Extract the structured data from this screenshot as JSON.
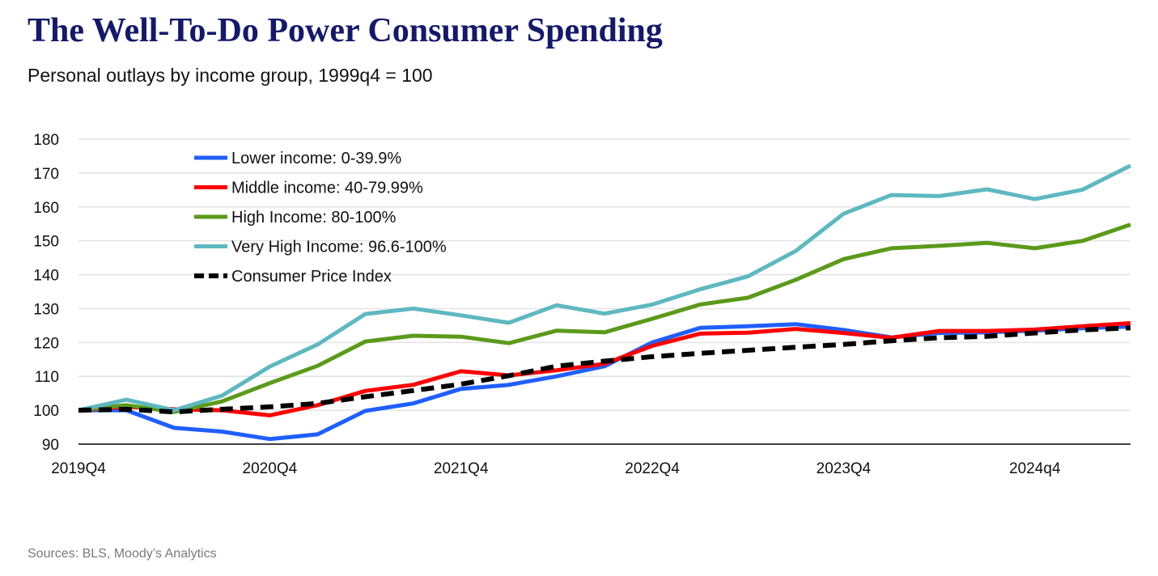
{
  "chart_data": {
    "type": "line",
    "title": "The Well-To-Do Power Consumer Spending",
    "subtitle": "Personal outlays by income group, 1999q4 = 100",
    "source": "Sources: BLS, Moody’s Analytics",
    "xlabel": "",
    "ylabel": "",
    "ylim": [
      90,
      180
    ],
    "yticks": [
      90,
      100,
      110,
      120,
      130,
      140,
      150,
      160,
      170,
      180
    ],
    "x": [
      "2019Q4",
      "2020Q1",
      "2020Q2",
      "2020Q3",
      "2020Q4",
      "2021Q1",
      "2021Q2",
      "2021Q3",
      "2021Q4",
      "2022Q1",
      "2022Q2",
      "2022Q3",
      "2022Q4",
      "2023Q1",
      "2023Q2",
      "2023Q3",
      "2023Q4",
      "2024Q1",
      "2024Q2",
      "2024Q3",
      "2024q4",
      "2025Q1",
      "2025Q2"
    ],
    "xtick_labels": [
      {
        "index": 0,
        "label": "2019Q4"
      },
      {
        "index": 4,
        "label": "2020Q4"
      },
      {
        "index": 8,
        "label": "2021Q4"
      },
      {
        "index": 12,
        "label": "2022Q4"
      },
      {
        "index": 16,
        "label": "2023Q4"
      },
      {
        "index": 20,
        "label": "2024q4"
      }
    ],
    "grid": true,
    "legend_position": "top-left",
    "series": [
      {
        "name": "Lower income: 0-39.9%",
        "color": "#1f5fff",
        "dashed": false,
        "values": [
          100,
          100,
          94.8,
          93.7,
          91.5,
          92.9,
          99.8,
          102,
          106.3,
          107.5,
          110,
          113,
          120,
          124.3,
          124.8,
          125.4,
          123.7,
          121.5,
          122.8,
          123,
          123.5,
          124.2,
          124.7
        ]
      },
      {
        "name": "Middle income: 40-79.99%",
        "color": "#ff0000",
        "dashed": false,
        "values": [
          100,
          101,
          100.3,
          100,
          98.5,
          101.5,
          105.7,
          107.5,
          111.5,
          110.3,
          111.8,
          113.7,
          119,
          122.6,
          122.9,
          124,
          122.8,
          121.4,
          123.4,
          123.4,
          123.8,
          124.8,
          125.7
        ]
      },
      {
        "name": "High Income: 80-100%",
        "color": "#5b9a1a",
        "dashed": false,
        "values": [
          100,
          101.5,
          99.5,
          102.6,
          108,
          113.1,
          120.3,
          122,
          121.7,
          119.8,
          123.5,
          123,
          127,
          131.2,
          133.2,
          138.5,
          144.6,
          147.8,
          148.5,
          149.4,
          147.8,
          150,
          154.8
        ]
      },
      {
        "name": "Very High Income: 96.6-100%",
        "color": "#5eb8c0",
        "dashed": false,
        "values": [
          100,
          103.1,
          100,
          104.3,
          112.9,
          119.4,
          128.4,
          130,
          128,
          125.8,
          131,
          128.5,
          131.2,
          135.7,
          139.5,
          147,
          158,
          163.5,
          163.2,
          165.2,
          162.3,
          165.1,
          172.2
        ]
      },
      {
        "name": "Consumer Price Index",
        "color": "#000000",
        "dashed": true,
        "values": [
          100,
          100.3,
          99.5,
          100.3,
          101,
          102,
          104,
          105.8,
          107.7,
          110.2,
          113,
          114.5,
          115.8,
          116.8,
          117.7,
          118.6,
          119.4,
          120.5,
          121.4,
          121.8,
          122.8,
          123.7,
          124.3
        ]
      }
    ]
  }
}
